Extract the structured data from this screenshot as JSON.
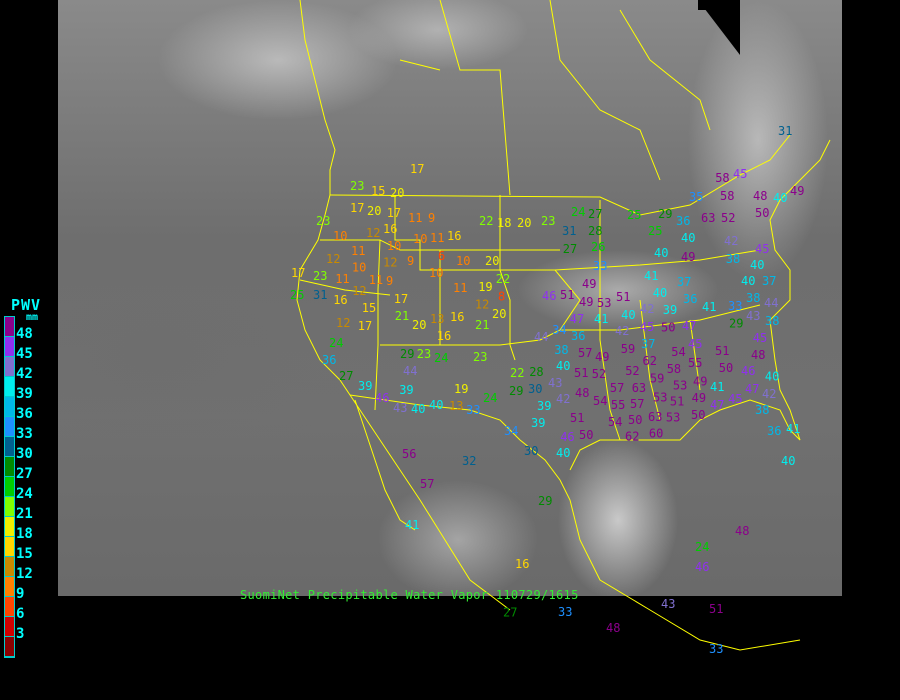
{
  "caption": "SuomiNet Precipitable Water Vapor 110729/1615",
  "legend": {
    "title": "PWV",
    "unit": "mm",
    "ticks": [
      "48",
      "45",
      "42",
      "39",
      "36",
      "33",
      "30",
      "27",
      "24",
      "21",
      "18",
      "15",
      "12",
      "9",
      "6",
      "3"
    ],
    "colors": [
      "#8b008b",
      "#9030f0",
      "#8070d0",
      "#00eeee",
      "#00b8e8",
      "#1e90ff",
      "#00608f",
      "#008b00",
      "#00cc00",
      "#80ff00",
      "#f0f000",
      "#ffd700",
      "#c88a00",
      "#ff8000",
      "#ff4500",
      "#d00000",
      "#8b0000"
    ]
  },
  "colors": {
    "boundaries": "#ffff00",
    "background": "#000000"
  },
  "stations": [
    17,
    23,
    15,
    20,
    17,
    20,
    17,
    16,
    11,
    9,
    22,
    18,
    20,
    23,
    10,
    12,
    10,
    10,
    11,
    16,
    11,
    10,
    12,
    6,
    12,
    11,
    9,
    10,
    10,
    20,
    17,
    23,
    11,
    12,
    9,
    22,
    19,
    8,
    11,
    12,
    25,
    31,
    16,
    15,
    17,
    21,
    20,
    13,
    16,
    16,
    17,
    12,
    20,
    21,
    24,
    23,
    27,
    31,
    28,
    27,
    26,
    25,
    29,
    33,
    49,
    46,
    51,
    49,
    53,
    51,
    47,
    34,
    36,
    44,
    38,
    40,
    57,
    49,
    51,
    52,
    43,
    42,
    48,
    54,
    51,
    50,
    46,
    39,
    34,
    39,
    40,
    30,
    30,
    35,
    58,
    48,
    50,
    40,
    63,
    52,
    25,
    36,
    40,
    40,
    49,
    42,
    38,
    45,
    40,
    40,
    38,
    37,
    41,
    40,
    42,
    37,
    36,
    39,
    41,
    33,
    44,
    43,
    50,
    47,
    41,
    40,
    42,
    45,
    37,
    29,
    38,
    45,
    48,
    59,
    62,
    52,
    45,
    54,
    58,
    51,
    50,
    46,
    59,
    63,
    55,
    53,
    49,
    57,
    51,
    53,
    49,
    41,
    47,
    47,
    45,
    42,
    40,
    55,
    57,
    50,
    53,
    50,
    38,
    54,
    63,
    62,
    60,
    36,
    41,
    40,
    45,
    58,
    31,
    49,
    56,
    32,
    57,
    41,
    29,
    24,
    46,
    48,
    43,
    51,
    48,
    33,
    27,
    33,
    16,
    24,
    36,
    27,
    39,
    46,
    43,
    40,
    40,
    39,
    44,
    29,
    23,
    24,
    19,
    24,
    33,
    13,
    23,
    22,
    29,
    28,
    38
  ]
}
